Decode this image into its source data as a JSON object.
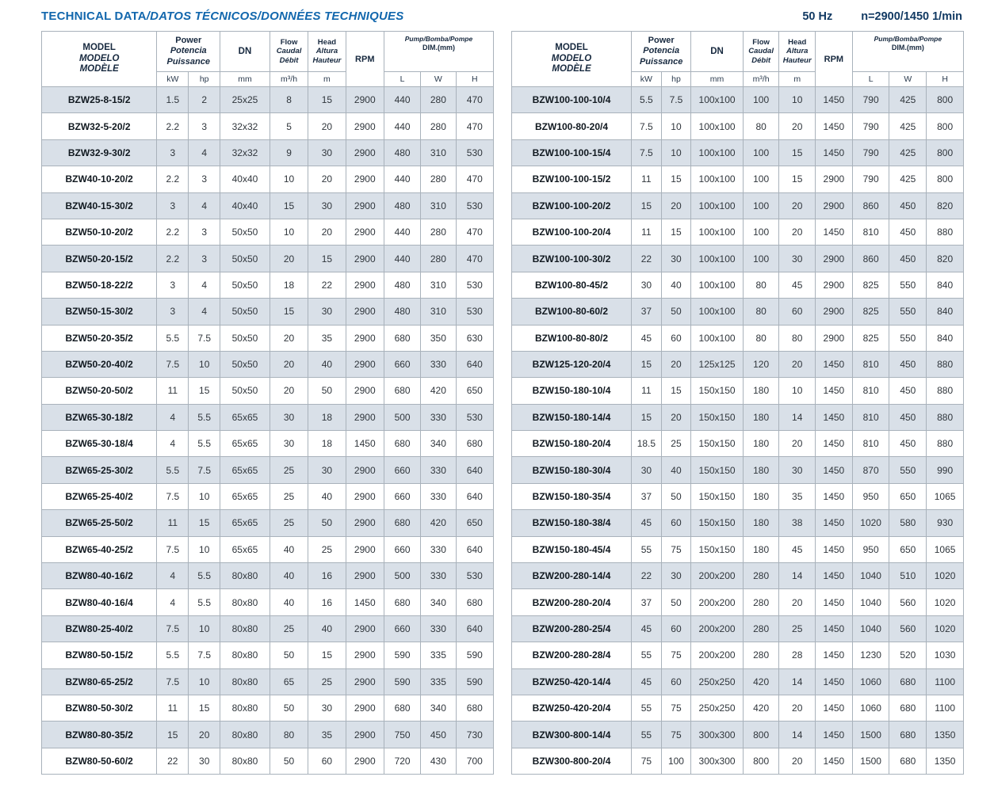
{
  "title": {
    "main": "TECHNICAL DATA",
    "rest": "/DATOS TÉCNICOS/DONNÉES TECHNIQUES"
  },
  "specs": {
    "frequency": "50 Hz",
    "speed": "n=2900/1450 1/min"
  },
  "colors": {
    "title_blue": "#1267ad",
    "header_navy": "#17293f",
    "stripe": "#d9e0e8",
    "border": "#a9b2bb"
  },
  "columns": {
    "model": {
      "l1": "MODEL",
      "l2": "MODELO",
      "l3": "MODÈLE"
    },
    "power": {
      "l1": "Power",
      "l2": "Potencia",
      "l3": "Puissance",
      "u1": "kW",
      "u2": "hp"
    },
    "dn": {
      "label": "DN",
      "unit": "mm"
    },
    "flow": {
      "l1": "Flow",
      "l2": "Caudal",
      "l3": "Débit",
      "unit": "m³/h"
    },
    "head": {
      "l1": "Head",
      "l2": "Altura",
      "l3": "Hauteur",
      "unit": "m"
    },
    "rpm": {
      "label": "RPM"
    },
    "dim": {
      "l1": "Pump/Bomba/Pompe",
      "l2": "DIM.(mm)",
      "u1": "L",
      "u2": "W",
      "u3": "H"
    }
  },
  "left_table_rows": [
    [
      "BZW25-8-15/2",
      "1.5",
      "2",
      "25x25",
      "8",
      "15",
      "2900",
      "440",
      "280",
      "470"
    ],
    [
      "BZW32-5-20/2",
      "2.2",
      "3",
      "32x32",
      "5",
      "20",
      "2900",
      "440",
      "280",
      "470"
    ],
    [
      "BZW32-9-30/2",
      "3",
      "4",
      "32x32",
      "9",
      "30",
      "2900",
      "480",
      "310",
      "530"
    ],
    [
      "BZW40-10-20/2",
      "2.2",
      "3",
      "40x40",
      "10",
      "20",
      "2900",
      "440",
      "280",
      "470"
    ],
    [
      "BZW40-15-30/2",
      "3",
      "4",
      "40x40",
      "15",
      "30",
      "2900",
      "480",
      "310",
      "530"
    ],
    [
      "BZW50-10-20/2",
      "2.2",
      "3",
      "50x50",
      "10",
      "20",
      "2900",
      "440",
      "280",
      "470"
    ],
    [
      "BZW50-20-15/2",
      "2.2",
      "3",
      "50x50",
      "20",
      "15",
      "2900",
      "440",
      "280",
      "470"
    ],
    [
      "BZW50-18-22/2",
      "3",
      "4",
      "50x50",
      "18",
      "22",
      "2900",
      "480",
      "310",
      "530"
    ],
    [
      "BZW50-15-30/2",
      "3",
      "4",
      "50x50",
      "15",
      "30",
      "2900",
      "480",
      "310",
      "530"
    ],
    [
      "BZW50-20-35/2",
      "5.5",
      "7.5",
      "50x50",
      "20",
      "35",
      "2900",
      "680",
      "350",
      "630"
    ],
    [
      "BZW50-20-40/2",
      "7.5",
      "10",
      "50x50",
      "20",
      "40",
      "2900",
      "660",
      "330",
      "640"
    ],
    [
      "BZW50-20-50/2",
      "11",
      "15",
      "50x50",
      "20",
      "50",
      "2900",
      "680",
      "420",
      "650"
    ],
    [
      "BZW65-30-18/2",
      "4",
      "5.5",
      "65x65",
      "30",
      "18",
      "2900",
      "500",
      "330",
      "530"
    ],
    [
      "BZW65-30-18/4",
      "4",
      "5.5",
      "65x65",
      "30",
      "18",
      "1450",
      "680",
      "340",
      "680"
    ],
    [
      "BZW65-25-30/2",
      "5.5",
      "7.5",
      "65x65",
      "25",
      "30",
      "2900",
      "660",
      "330",
      "640"
    ],
    [
      "BZW65-25-40/2",
      "7.5",
      "10",
      "65x65",
      "25",
      "40",
      "2900",
      "660",
      "330",
      "640"
    ],
    [
      "BZW65-25-50/2",
      "11",
      "15",
      "65x65",
      "25",
      "50",
      "2900",
      "680",
      "420",
      "650"
    ],
    [
      "BZW65-40-25/2",
      "7.5",
      "10",
      "65x65",
      "40",
      "25",
      "2900",
      "660",
      "330",
      "640"
    ],
    [
      "BZW80-40-16/2",
      "4",
      "5.5",
      "80x80",
      "40",
      "16",
      "2900",
      "500",
      "330",
      "530"
    ],
    [
      "BZW80-40-16/4",
      "4",
      "5.5",
      "80x80",
      "40",
      "16",
      "1450",
      "680",
      "340",
      "680"
    ],
    [
      "BZW80-25-40/2",
      "7.5",
      "10",
      "80x80",
      "25",
      "40",
      "2900",
      "660",
      "330",
      "640"
    ],
    [
      "BZW80-50-15/2",
      "5.5",
      "7.5",
      "80x80",
      "50",
      "15",
      "2900",
      "590",
      "335",
      "590"
    ],
    [
      "BZW80-65-25/2",
      "7.5",
      "10",
      "80x80",
      "65",
      "25",
      "2900",
      "590",
      "335",
      "590"
    ],
    [
      "BZW80-50-30/2",
      "11",
      "15",
      "80x80",
      "50",
      "30",
      "2900",
      "680",
      "340",
      "680"
    ],
    [
      "BZW80-80-35/2",
      "15",
      "20",
      "80x80",
      "80",
      "35",
      "2900",
      "750",
      "450",
      "730"
    ],
    [
      "BZW80-50-60/2",
      "22",
      "30",
      "80x80",
      "50",
      "60",
      "2900",
      "720",
      "430",
      "700"
    ]
  ],
  "right_table_rows": [
    [
      "BZW100-100-10/4",
      "5.5",
      "7.5",
      "100x100",
      "100",
      "10",
      "1450",
      "790",
      "425",
      "800"
    ],
    [
      "BZW100-80-20/4",
      "7.5",
      "10",
      "100x100",
      "80",
      "20",
      "1450",
      "790",
      "425",
      "800"
    ],
    [
      "BZW100-100-15/4",
      "7.5",
      "10",
      "100x100",
      "100",
      "15",
      "1450",
      "790",
      "425",
      "800"
    ],
    [
      "BZW100-100-15/2",
      "11",
      "15",
      "100x100",
      "100",
      "15",
      "2900",
      "790",
      "425",
      "800"
    ],
    [
      "BZW100-100-20/2",
      "15",
      "20",
      "100x100",
      "100",
      "20",
      "2900",
      "860",
      "450",
      "820"
    ],
    [
      "BZW100-100-20/4",
      "11",
      "15",
      "100x100",
      "100",
      "20",
      "1450",
      "810",
      "450",
      "880"
    ],
    [
      "BZW100-100-30/2",
      "22",
      "30",
      "100x100",
      "100",
      "30",
      "2900",
      "860",
      "450",
      "820"
    ],
    [
      "BZW100-80-45/2",
      "30",
      "40",
      "100x100",
      "80",
      "45",
      "2900",
      "825",
      "550",
      "840"
    ],
    [
      "BZW100-80-60/2",
      "37",
      "50",
      "100x100",
      "80",
      "60",
      "2900",
      "825",
      "550",
      "840"
    ],
    [
      "BZW100-80-80/2",
      "45",
      "60",
      "100x100",
      "80",
      "80",
      "2900",
      "825",
      "550",
      "840"
    ],
    [
      "BZW125-120-20/4",
      "15",
      "20",
      "125x125",
      "120",
      "20",
      "1450",
      "810",
      "450",
      "880"
    ],
    [
      "BZW150-180-10/4",
      "11",
      "15",
      "150x150",
      "180",
      "10",
      "1450",
      "810",
      "450",
      "880"
    ],
    [
      "BZW150-180-14/4",
      "15",
      "20",
      "150x150",
      "180",
      "14",
      "1450",
      "810",
      "450",
      "880"
    ],
    [
      "BZW150-180-20/4",
      "18.5",
      "25",
      "150x150",
      "180",
      "20",
      "1450",
      "810",
      "450",
      "880"
    ],
    [
      "BZW150-180-30/4",
      "30",
      "40",
      "150x150",
      "180",
      "30",
      "1450",
      "870",
      "550",
      "990"
    ],
    [
      "BZW150-180-35/4",
      "37",
      "50",
      "150x150",
      "180",
      "35",
      "1450",
      "950",
      "650",
      "1065"
    ],
    [
      "BZW150-180-38/4",
      "45",
      "60",
      "150x150",
      "180",
      "38",
      "1450",
      "1020",
      "580",
      "930"
    ],
    [
      "BZW150-180-45/4",
      "55",
      "75",
      "150x150",
      "180",
      "45",
      "1450",
      "950",
      "650",
      "1065"
    ],
    [
      "BZW200-280-14/4",
      "22",
      "30",
      "200x200",
      "280",
      "14",
      "1450",
      "1040",
      "510",
      "1020"
    ],
    [
      "BZW200-280-20/4",
      "37",
      "50",
      "200x200",
      "280",
      "20",
      "1450",
      "1040",
      "560",
      "1020"
    ],
    [
      "BZW200-280-25/4",
      "45",
      "60",
      "200x200",
      "280",
      "25",
      "1450",
      "1040",
      "560",
      "1020"
    ],
    [
      "BZW200-280-28/4",
      "55",
      "75",
      "200x200",
      "280",
      "28",
      "1450",
      "1230",
      "520",
      "1030"
    ],
    [
      "BZW250-420-14/4",
      "45",
      "60",
      "250x250",
      "420",
      "14",
      "1450",
      "1060",
      "680",
      "1100"
    ],
    [
      "BZW250-420-20/4",
      "55",
      "75",
      "250x250",
      "420",
      "20",
      "1450",
      "1060",
      "680",
      "1100"
    ],
    [
      "BZW300-800-14/4",
      "55",
      "75",
      "300x300",
      "800",
      "14",
      "1450",
      "1500",
      "680",
      "1350"
    ],
    [
      "BZW300-800-20/4",
      "75",
      "100",
      "300x300",
      "800",
      "20",
      "1450",
      "1500",
      "680",
      "1350"
    ]
  ]
}
